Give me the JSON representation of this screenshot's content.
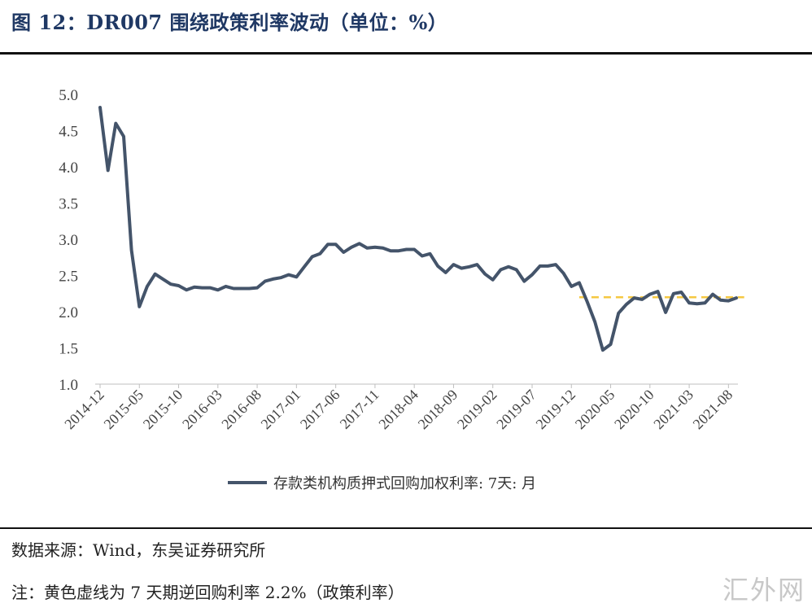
{
  "figure": {
    "title": "图 12：DR007 围绕政策利率波动（单位：%）",
    "source": "数据来源：Wind，东吴证券研究所",
    "note": "注：黄色虚线为 7 天期逆回购利率 2.2%（政策利率）",
    "watermark": "汇外网"
  },
  "colors": {
    "series": "#44546a",
    "policy_line": "#f5c842",
    "title": "#1f3864"
  },
  "chart_data": {
    "type": "line",
    "title": "",
    "xlabel": "",
    "ylabel": "",
    "ylim": [
      1.0,
      5.0
    ],
    "y_ticks": [
      "5.0",
      "4.5",
      "4.0",
      "3.5",
      "3.0",
      "2.5",
      "2.0",
      "1.5",
      "1.0"
    ],
    "x_ticks": [
      "2014-12",
      "2015-05",
      "2015-10",
      "2016-03",
      "2016-08",
      "2017-01",
      "2017-06",
      "2017-11",
      "2018-04",
      "2018-09",
      "2019-02",
      "2019-07",
      "2019-12",
      "2020-05",
      "2020-10",
      "2021-03",
      "2021-08"
    ],
    "grid": false,
    "legend_position": "bottom",
    "series": [
      {
        "name": "存款类机构质押式回购加权利率: 7天: 月",
        "x": [
          "2014-12",
          "2015-01",
          "2015-02",
          "2015-03",
          "2015-04",
          "2015-05",
          "2015-06",
          "2015-07",
          "2015-08",
          "2015-09",
          "2015-10",
          "2015-11",
          "2015-12",
          "2016-01",
          "2016-02",
          "2016-03",
          "2016-04",
          "2016-05",
          "2016-06",
          "2016-07",
          "2016-08",
          "2016-09",
          "2016-10",
          "2016-11",
          "2016-12",
          "2017-01",
          "2017-02",
          "2017-03",
          "2017-04",
          "2017-05",
          "2017-06",
          "2017-07",
          "2017-08",
          "2017-09",
          "2017-10",
          "2017-11",
          "2017-12",
          "2018-01",
          "2018-02",
          "2018-03",
          "2018-04",
          "2018-05",
          "2018-06",
          "2018-07",
          "2018-08",
          "2018-09",
          "2018-10",
          "2018-11",
          "2018-12",
          "2019-01",
          "2019-02",
          "2019-03",
          "2019-04",
          "2019-05",
          "2019-06",
          "2019-07",
          "2019-08",
          "2019-09",
          "2019-10",
          "2019-11",
          "2019-12",
          "2020-01",
          "2020-02",
          "2020-03",
          "2020-04",
          "2020-05",
          "2020-06",
          "2020-07",
          "2020-08",
          "2020-09",
          "2020-10",
          "2020-11",
          "2020-12",
          "2021-01",
          "2021-02",
          "2021-03",
          "2021-04",
          "2021-05",
          "2021-06",
          "2021-07",
          "2021-08",
          "2021-09"
        ],
        "values": [
          4.82,
          3.95,
          4.6,
          4.42,
          2.85,
          2.07,
          2.35,
          2.52,
          2.45,
          2.38,
          2.36,
          2.3,
          2.34,
          2.33,
          2.33,
          2.3,
          2.35,
          2.32,
          2.32,
          2.32,
          2.33,
          2.42,
          2.45,
          2.47,
          2.51,
          2.48,
          2.62,
          2.76,
          2.8,
          2.93,
          2.93,
          2.82,
          2.89,
          2.94,
          2.88,
          2.89,
          2.88,
          2.84,
          2.84,
          2.86,
          2.86,
          2.77,
          2.8,
          2.63,
          2.54,
          2.65,
          2.6,
          2.62,
          2.65,
          2.52,
          2.44,
          2.58,
          2.62,
          2.58,
          2.42,
          2.51,
          2.63,
          2.63,
          2.65,
          2.53,
          2.35,
          2.4,
          2.14,
          1.86,
          1.47,
          1.55,
          1.98,
          2.1,
          2.19,
          2.17,
          2.24,
          2.28,
          1.99,
          2.25,
          2.27,
          2.12,
          2.11,
          2.12,
          2.24,
          2.16,
          2.15,
          2.19
        ]
      }
    ],
    "reference_line": {
      "value": 2.2,
      "from": "2020-01",
      "to": "2021-10",
      "style": "dashed"
    }
  }
}
